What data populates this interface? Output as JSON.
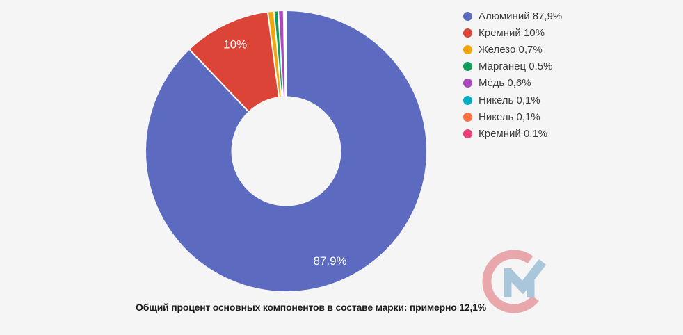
{
  "background_color": "#f5f5f5",
  "chart_data": {
    "type": "pie",
    "subtype": "donut",
    "start_angle_deg": 0,
    "direction": "clockwise",
    "legend_position": "right",
    "grid": false,
    "total_percent": 100,
    "slices": [
      {
        "name": "Алюминий",
        "value": 87.9,
        "color": "#5C6BC0",
        "legend_label": "Алюминий 87,9%",
        "slice_label": "87.9%"
      },
      {
        "name": "Кремний",
        "value": 10,
        "color": "#DB4437",
        "legend_label": "Кремний 10%",
        "slice_label": "10%"
      },
      {
        "name": "Железо",
        "value": 0.7,
        "color": "#F2A60C",
        "legend_label": "Железо 0,7%",
        "slice_label": ""
      },
      {
        "name": "Марганец",
        "value": 0.5,
        "color": "#0F9D58",
        "legend_label": "Марганец 0,5%",
        "slice_label": ""
      },
      {
        "name": "Медь",
        "value": 0.6,
        "color": "#AB47BC",
        "legend_label": "Медь 0,6%",
        "slice_label": ""
      },
      {
        "name": "Никель",
        "value": 0.1,
        "color": "#00ACC1",
        "legend_label": "Никель 0,1%",
        "slice_label": ""
      },
      {
        "name": "Никель",
        "value": 0.1,
        "color": "#FF7043",
        "legend_label": "Никель 0,1%",
        "slice_label": ""
      },
      {
        "name": "Кремний",
        "value": 0.1,
        "color": "#EC407A",
        "legend_label": "Кремний 0,1%",
        "slice_label": ""
      }
    ],
    "caption": "Общий процент основных компонентов в составе марки: примерно 12,1%"
  },
  "watermark": {
    "letters": "СМ",
    "c_color": "#E8A7AA",
    "m_color": "#A9C6DA"
  }
}
